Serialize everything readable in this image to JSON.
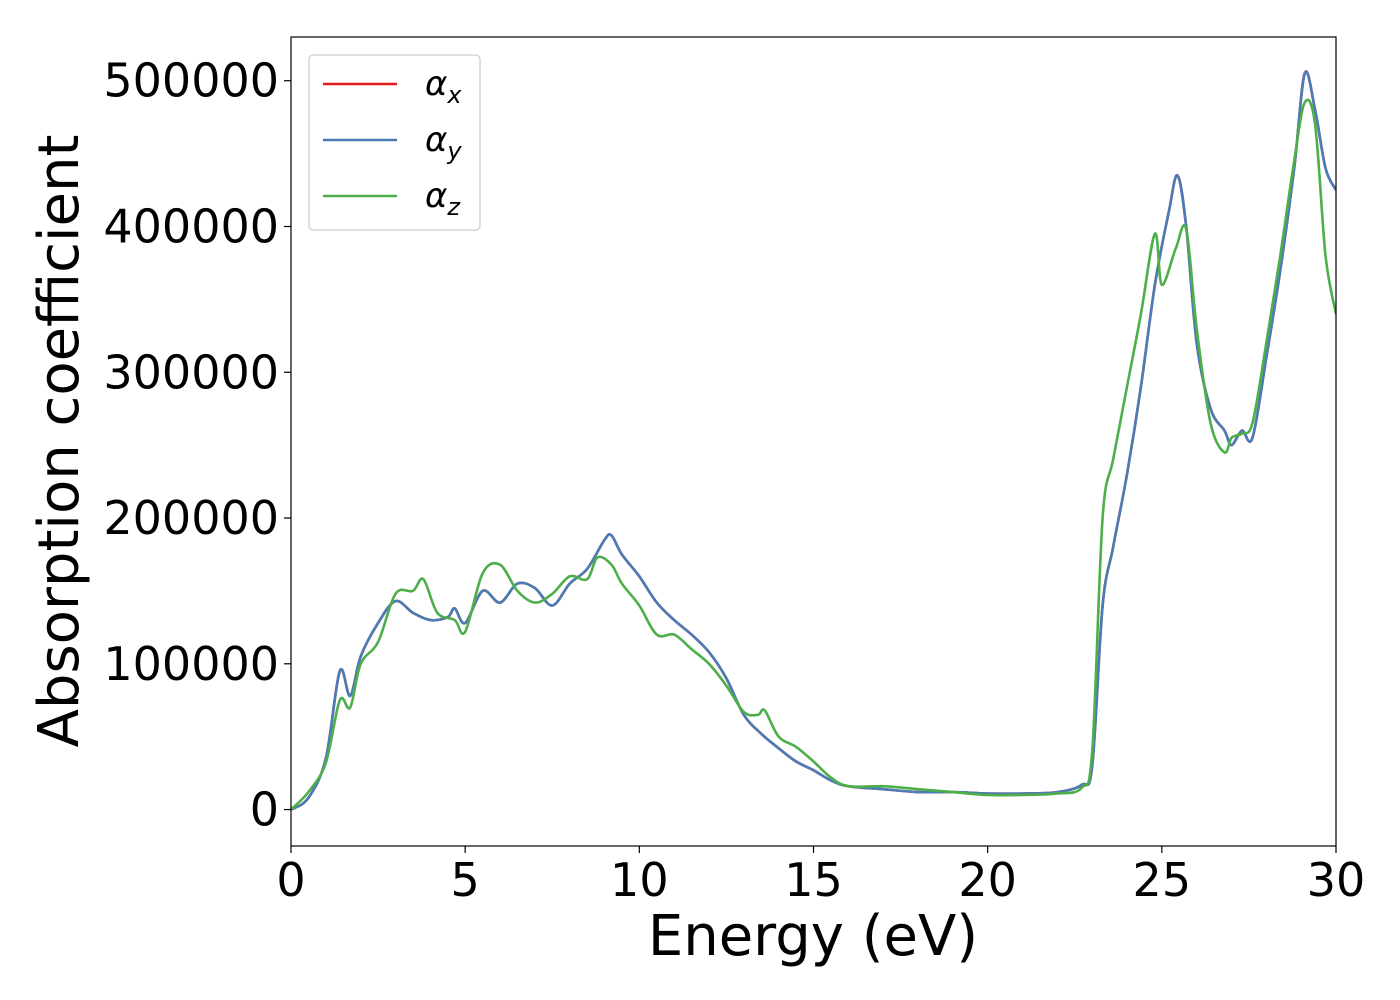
{
  "chart_data": {
    "type": "line",
    "title": "",
    "xlabel": "Energy (eV)",
    "ylabel": "Absorption coefficient",
    "xlim": [
      0,
      30
    ],
    "ylim": [
      -25000,
      530000
    ],
    "xticks": [
      0,
      5,
      10,
      15,
      20,
      25,
      30
    ],
    "xtick_labels": [
      "0",
      "5",
      "10",
      "15",
      "20",
      "25",
      "30"
    ],
    "yticks": [
      0,
      100000,
      200000,
      300000,
      400000,
      500000
    ],
    "ytick_labels": [
      "0",
      "100000",
      "200000",
      "300000",
      "400000",
      "500000"
    ],
    "grid": false,
    "legend_position": "top-left",
    "series": [
      {
        "name": "α",
        "subscript": "x",
        "color": "#e41a1c",
        "x": [
          0,
          0.5,
          1.0,
          1.4,
          1.7,
          2.0,
          2.5,
          3.0,
          3.5,
          4.0,
          4.5,
          4.7,
          5.0,
          5.5,
          6.0,
          6.5,
          7.0,
          7.5,
          8.0,
          8.5,
          9.0,
          9.2,
          9.5,
          10.0,
          10.5,
          11.0,
          11.5,
          12.0,
          12.5,
          13.0,
          13.5,
          14.0,
          14.5,
          15.0,
          15.5,
          16.0,
          17.0,
          18.0,
          19.0,
          20.0,
          21.0,
          22.0,
          22.7,
          23.0,
          23.3,
          23.6,
          24.0,
          24.4,
          24.8,
          25.2,
          25.45,
          25.7,
          26.0,
          26.4,
          26.8,
          27.0,
          27.3,
          27.6,
          28.0,
          28.4,
          28.8,
          29.1,
          29.4,
          29.7,
          30.0
        ],
        "y": [
          0,
          8000,
          35000,
          95000,
          78000,
          105000,
          128000,
          143000,
          135000,
          130000,
          132000,
          138000,
          128000,
          150000,
          142000,
          155000,
          152000,
          140000,
          155000,
          165000,
          185000,
          188000,
          175000,
          160000,
          142000,
          130000,
          120000,
          108000,
          90000,
          65000,
          52000,
          42000,
          33000,
          27000,
          20000,
          16000,
          14000,
          12000,
          12000,
          11000,
          11000,
          12000,
          17000,
          30000,
          140000,
          180000,
          230000,
          290000,
          360000,
          410000,
          435000,
          400000,
          320000,
          275000,
          260000,
          250000,
          260000,
          255000,
          310000,
          370000,
          440000,
          505000,
          480000,
          440000,
          425000
        ]
      },
      {
        "name": "α",
        "subscript": "y",
        "color": "#4a7db5",
        "x": [
          0,
          0.5,
          1.0,
          1.4,
          1.7,
          2.0,
          2.5,
          3.0,
          3.5,
          4.0,
          4.5,
          4.7,
          5.0,
          5.5,
          6.0,
          6.5,
          7.0,
          7.5,
          8.0,
          8.5,
          9.0,
          9.2,
          9.5,
          10.0,
          10.5,
          11.0,
          11.5,
          12.0,
          12.5,
          13.0,
          13.5,
          14.0,
          14.5,
          15.0,
          15.5,
          16.0,
          17.0,
          18.0,
          19.0,
          20.0,
          21.0,
          22.0,
          22.7,
          23.0,
          23.3,
          23.6,
          24.0,
          24.4,
          24.8,
          25.2,
          25.45,
          25.7,
          26.0,
          26.4,
          26.8,
          27.0,
          27.3,
          27.6,
          28.0,
          28.4,
          28.8,
          29.1,
          29.4,
          29.7,
          30.0
        ],
        "y": [
          0,
          8000,
          35000,
          95000,
          78000,
          105000,
          128000,
          143000,
          135000,
          130000,
          132000,
          138000,
          128000,
          150000,
          142000,
          155000,
          152000,
          140000,
          155000,
          165000,
          185000,
          188000,
          175000,
          160000,
          142000,
          130000,
          120000,
          108000,
          90000,
          65000,
          52000,
          42000,
          33000,
          27000,
          20000,
          16000,
          14000,
          12000,
          12000,
          11000,
          11000,
          12000,
          17000,
          30000,
          140000,
          180000,
          230000,
          290000,
          360000,
          410000,
          435000,
          400000,
          320000,
          275000,
          260000,
          250000,
          260000,
          255000,
          310000,
          370000,
          440000,
          505000,
          480000,
          440000,
          425000
        ]
      },
      {
        "name": "α",
        "subscript": "z",
        "color": "#4daf4a",
        "x": [
          0,
          0.5,
          1.0,
          1.4,
          1.7,
          2.0,
          2.5,
          3.0,
          3.5,
          3.8,
          4.2,
          4.7,
          5.0,
          5.5,
          6.0,
          6.5,
          7.0,
          7.5,
          8.0,
          8.5,
          8.8,
          9.2,
          9.5,
          10.0,
          10.5,
          11.0,
          11.5,
          12.0,
          12.5,
          13.0,
          13.4,
          13.6,
          14.0,
          14.5,
          15.0,
          15.5,
          16.0,
          17.0,
          18.0,
          19.0,
          20.0,
          21.0,
          22.0,
          22.7,
          23.0,
          23.3,
          23.6,
          24.0,
          24.4,
          24.8,
          25.0,
          25.4,
          25.7,
          26.0,
          26.4,
          26.8,
          27.0,
          27.3,
          27.6,
          28.0,
          28.4,
          28.8,
          29.1,
          29.4,
          29.7,
          30.0
        ],
        "y": [
          0,
          12000,
          32000,
          75000,
          70000,
          100000,
          115000,
          148000,
          150000,
          158000,
          135000,
          130000,
          122000,
          162000,
          168000,
          150000,
          142000,
          148000,
          160000,
          158000,
          173000,
          168000,
          155000,
          140000,
          120000,
          120000,
          110000,
          100000,
          85000,
          67000,
          65000,
          68000,
          50000,
          43000,
          33000,
          22000,
          16000,
          16000,
          14000,
          12000,
          10000,
          10000,
          11000,
          15000,
          40000,
          200000,
          240000,
          290000,
          340000,
          395000,
          360000,
          385000,
          398000,
          330000,
          265000,
          245000,
          255000,
          258000,
          265000,
          320000,
          380000,
          445000,
          485000,
          470000,
          380000,
          340000
        ]
      }
    ]
  }
}
